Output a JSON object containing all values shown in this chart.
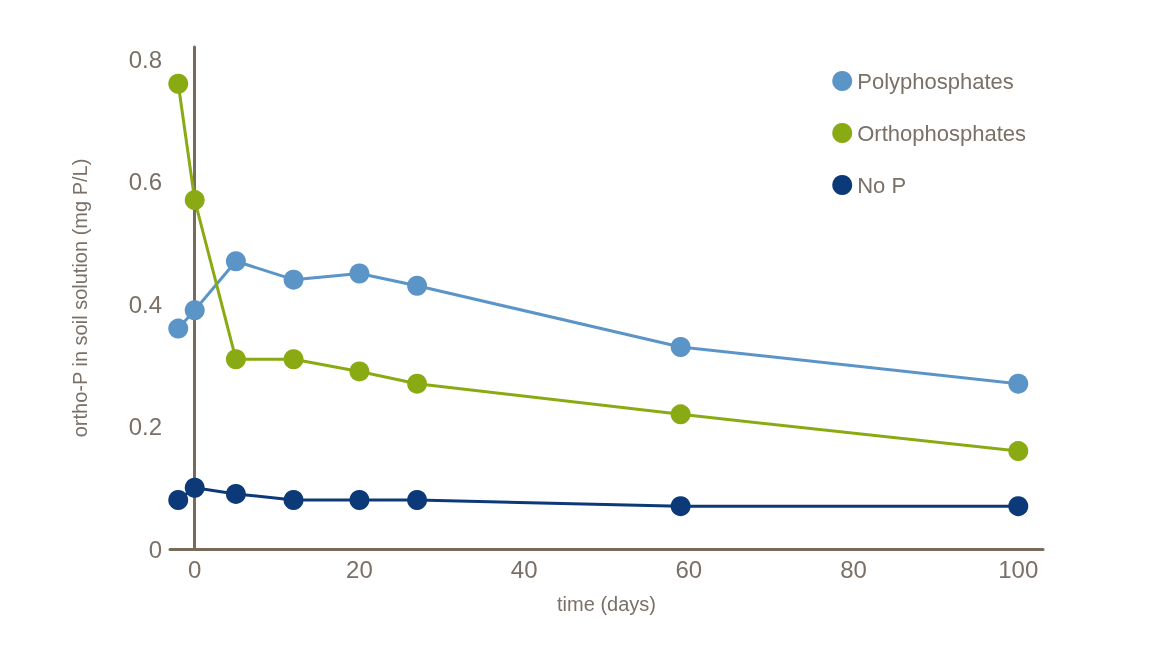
{
  "chart_data": {
    "type": "line",
    "xlabel": "time (days)",
    "ylabel": "ortho-P in soil solution (mg P/L)",
    "x": [
      -2,
      0,
      5,
      12,
      20,
      27,
      59,
      100
    ],
    "series": [
      {
        "name": "Polyphosphates",
        "color": "#5b95c8",
        "values": [
          0.36,
          0.39,
          0.47,
          0.44,
          0.45,
          0.43,
          0.33,
          0.27
        ]
      },
      {
        "name": "Orthophosphates",
        "color": "#8aaa14",
        "values": [
          0.76,
          0.57,
          0.31,
          0.31,
          0.29,
          0.27,
          0.22,
          0.16
        ]
      },
      {
        "name": "No P",
        "color": "#0c3a78",
        "values": [
          0.08,
          0.1,
          0.09,
          0.08,
          0.08,
          0.08,
          0.07,
          0.07
        ]
      }
    ],
    "xlim": [
      -3,
      103
    ],
    "xticks": [
      0,
      20,
      40,
      60,
      80,
      100
    ],
    "ylim": [
      0,
      0.82
    ],
    "yticks": [
      0,
      0.2,
      0.4,
      0.6,
      0.8
    ],
    "grid": false,
    "legend": "top right",
    "marker": "circle",
    "line_style": "solid"
  }
}
